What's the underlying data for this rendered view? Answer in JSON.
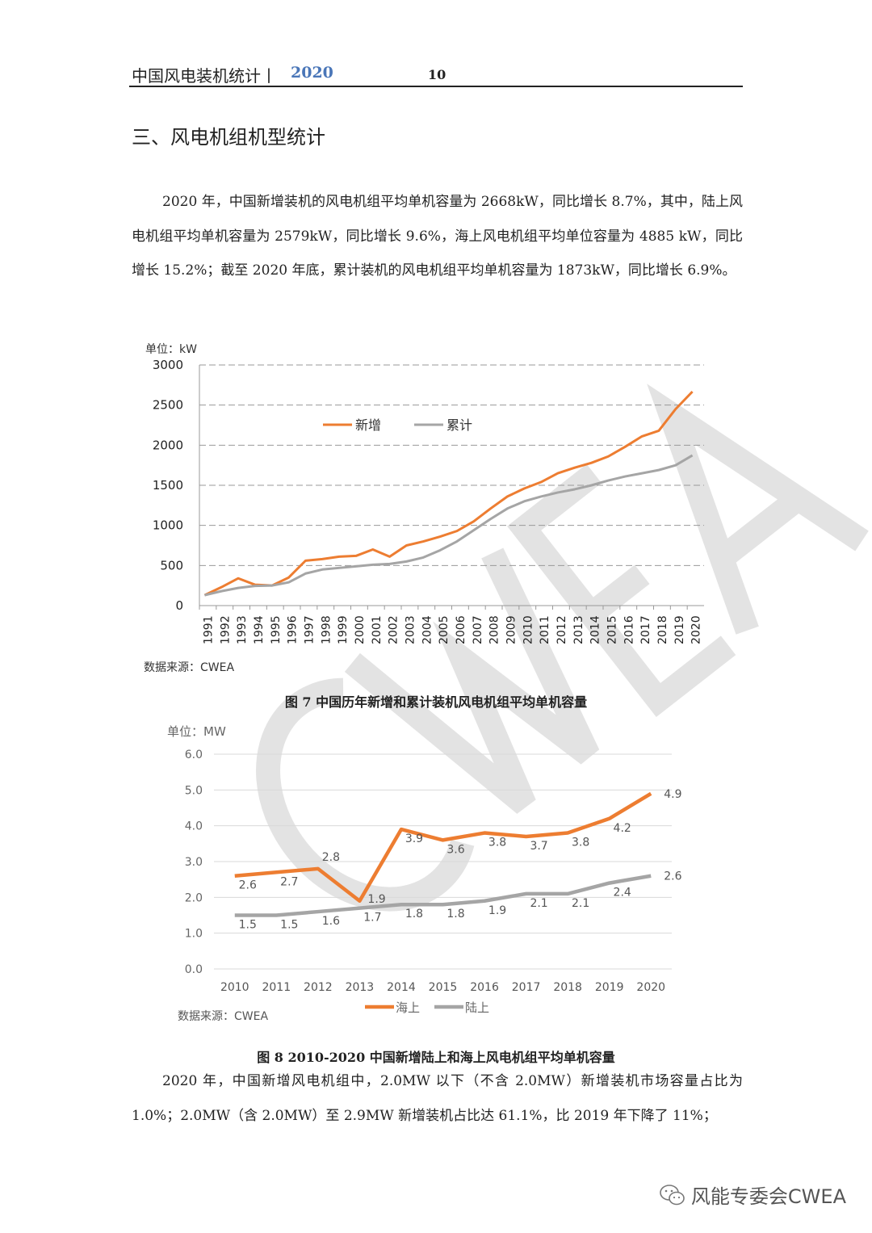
{
  "header": {
    "title": "中国风电装机统计丨",
    "year": "2020",
    "page_number": "10"
  },
  "section_title": "三、风电机组机型统计",
  "paragraph_1": "2020 年，中国新增装机的风电机组平均单机容量为 2668kW，同比增长 8.7%，其中，陆上风电机组平均单机容量为 2579kW，同比增长 9.6%，海上风电机组平均单位容量为 4885 kW，同比增长 15.2%；截至 2020 年底，累计装机的风电机组平均单机容量为 1873kW，同比增长 6.9%。",
  "paragraph_2": "2020 年，中国新增风电机组中，2.0MW 以下（不含 2.0MW）新增装机市场容量占比为 1.0%；2.0MW（含 2.0MW）至 2.9MW 新增装机占比达 61.1%，比 2019 年下降了 11%；",
  "watermark": "CWEA",
  "footer": {
    "text": "风能专委会CWEA",
    "icon": "wechat-icon"
  },
  "chart_data": [
    {
      "type": "line",
      "unit_label": "单位：kW",
      "source": "数据来源：CWEA",
      "caption": "图  7    中国历年新增和累计装机风电机组平均单机容量",
      "ylim": [
        0,
        3000
      ],
      "yticks": [
        0,
        500,
        1000,
        1500,
        2000,
        2500,
        3000
      ],
      "grid": true,
      "legend": "top-center",
      "x": [
        "1991",
        "1992",
        "1993",
        "1994",
        "1995",
        "1996",
        "1997",
        "1998",
        "1999",
        "2000",
        "2001",
        "2002",
        "2003",
        "2004",
        "2005",
        "2006",
        "2007",
        "2008",
        "2009",
        "2010",
        "2011",
        "2012",
        "2013",
        "2014",
        "2015",
        "2016",
        "2017",
        "2018",
        "2019",
        "2020"
      ],
      "series": [
        {
          "name": "新增",
          "color": "#ed7d31",
          "values": [
            130,
            230,
            340,
            260,
            250,
            350,
            560,
            580,
            610,
            620,
            700,
            610,
            750,
            800,
            860,
            930,
            1050,
            1210,
            1360,
            1460,
            1540,
            1650,
            1720,
            1780,
            1860,
            1980,
            2110,
            2180,
            2450,
            2668
          ]
        },
        {
          "name": "累计",
          "color": "#a5a5a5",
          "values": [
            130,
            180,
            220,
            245,
            250,
            290,
            400,
            450,
            470,
            490,
            510,
            520,
            550,
            600,
            690,
            800,
            940,
            1080,
            1210,
            1300,
            1360,
            1410,
            1450,
            1500,
            1560,
            1610,
            1650,
            1690,
            1750,
            1873
          ]
        }
      ]
    },
    {
      "type": "line",
      "unit_label": "单位：MW",
      "source": "数据来源：CWEA",
      "caption": "图  8    2010-2020 中国新增陆上和海上风电机组平均单机容量",
      "ylim": [
        0,
        6
      ],
      "yticks": [
        "0.0",
        "1.0",
        "2.0",
        "3.0",
        "4.0",
        "5.0",
        "6.0"
      ],
      "grid": true,
      "legend": "bottom",
      "x": [
        "2010",
        "2011",
        "2012",
        "2013",
        "2014",
        "2015",
        "2016",
        "2017",
        "2018",
        "2019",
        "2020"
      ],
      "series": [
        {
          "name": "海上",
          "color": "#ed7d31",
          "values": [
            2.6,
            2.7,
            2.8,
            1.9,
            3.9,
            3.6,
            3.8,
            3.7,
            3.8,
            4.2,
            4.9
          ],
          "labels": [
            "2.6",
            "2.7",
            "2.8",
            "1.9",
            "3.9",
            "3.6",
            "3.8",
            "3.7",
            "3.8",
            "4.2",
            "4.9"
          ]
        },
        {
          "name": "陆上",
          "color": "#a5a5a5",
          "values": [
            1.5,
            1.5,
            1.6,
            1.7,
            1.8,
            1.8,
            1.9,
            2.1,
            2.1,
            2.4,
            2.6
          ],
          "labels": [
            "1.5",
            "1.5",
            "1.6",
            "1.7",
            "1.8",
            "1.8",
            "1.9",
            "2.1",
            "2.1",
            "2.4",
            "2.6"
          ]
        }
      ]
    }
  ]
}
